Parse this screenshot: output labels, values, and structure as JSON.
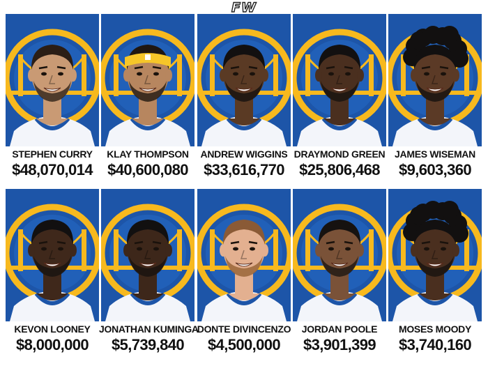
{
  "brand": "FW",
  "colors": {
    "background": "#ffffff",
    "warriors_blue": "#1d55a8",
    "warriors_gold": "#f7b91e",
    "text": "#111111"
  },
  "players": [
    {
      "name": "STEPHEN CURRY",
      "salary": "$48,070,014",
      "skin": "#c99a74",
      "hair": "#2b1e16",
      "beard": "#3a2a1e",
      "accessory": "none"
    },
    {
      "name": "KLAY THOMPSON",
      "salary": "$40,600,080",
      "skin": "#b7865f",
      "hair": "#1f1712",
      "beard": "#2a1e15",
      "accessory": "headband"
    },
    {
      "name": "ANDREW WIGGINS",
      "salary": "$33,616,770",
      "skin": "#5a3a24",
      "hair": "#121010",
      "beard": "#1a1410",
      "accessory": "none"
    },
    {
      "name": "DRAYMOND GREEN",
      "salary": "$25,806,468",
      "skin": "#4a2f1f",
      "hair": "#121010",
      "beard": "#1a1410",
      "accessory": "none"
    },
    {
      "name": "JAMES WISEMAN",
      "salary": "$9,603,360",
      "skin": "#5b3a26",
      "hair": "#121010",
      "beard": "#1a1410",
      "accessory": "curly"
    },
    {
      "name": "KEVON LOONEY",
      "salary": "$8,000,000",
      "skin": "#3f281b",
      "hair": "#121010",
      "beard": "#1a1410",
      "accessory": "none"
    },
    {
      "name": "JONATHAN KUMINGA",
      "salary": "$5,739,840",
      "skin": "#3d271a",
      "hair": "#121010",
      "beard": "#1a1410",
      "accessory": "none"
    },
    {
      "name": "DONTE DIVINCENZO",
      "salary": "$4,500,000",
      "skin": "#e3b090",
      "hair": "#8a5a36",
      "beard": "#9a6638",
      "accessory": "none"
    },
    {
      "name": "JORDAN POOLE",
      "salary": "$3,901,399",
      "skin": "#7a5238",
      "hair": "#161210",
      "beard": "#221a14",
      "accessory": "none"
    },
    {
      "name": "MOSES MOODY",
      "salary": "$3,740,160",
      "skin": "#4a2f1f",
      "hair": "#121010",
      "beard": "#1a1410",
      "accessory": "curly"
    }
  ]
}
